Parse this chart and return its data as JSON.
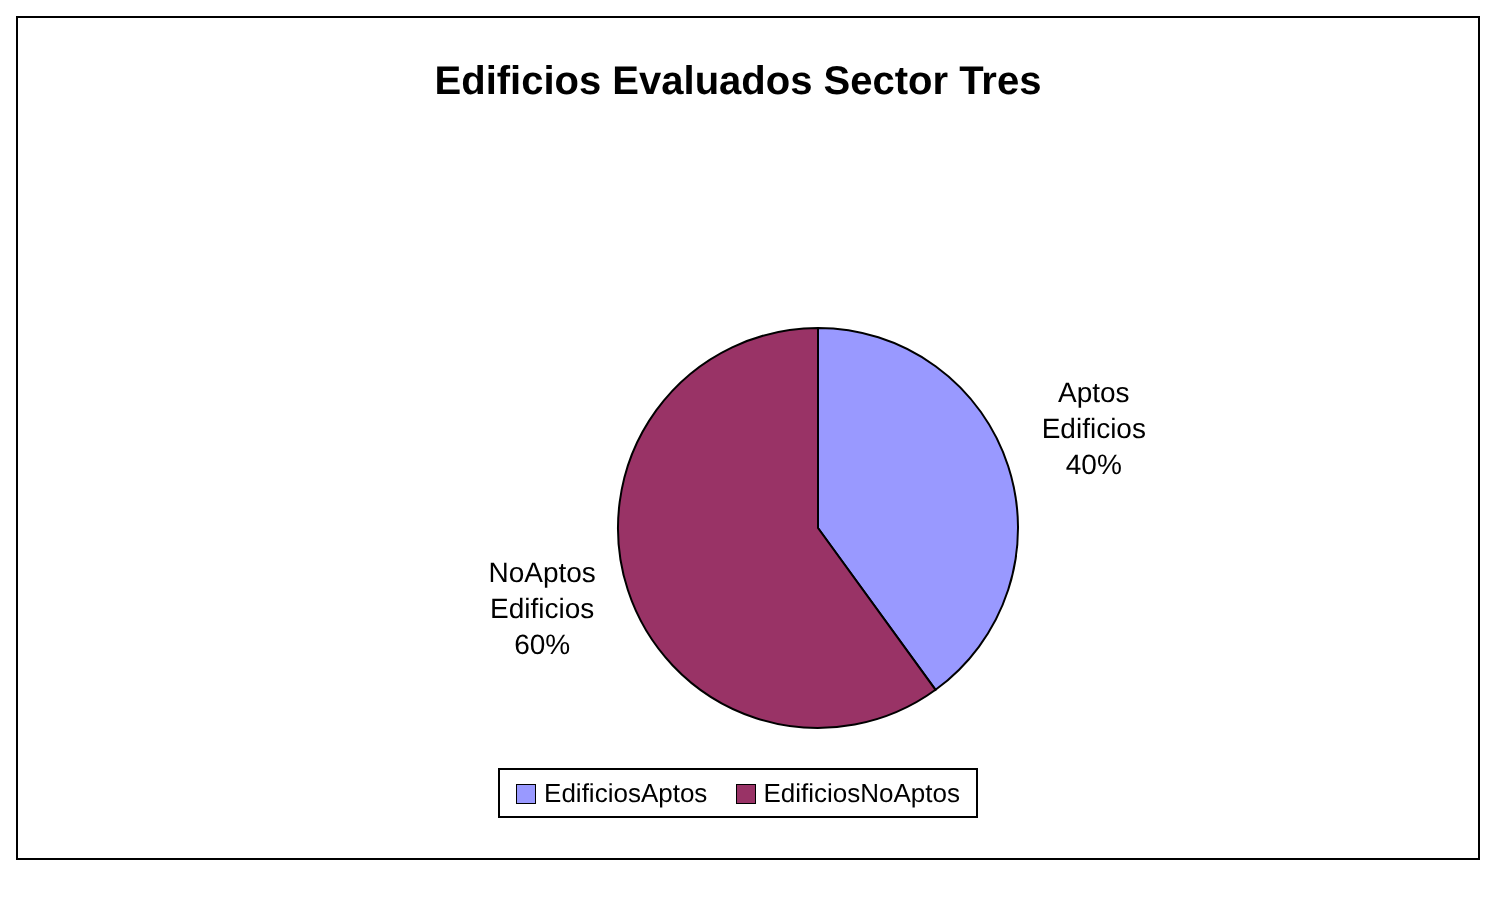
{
  "chart_data": {
    "type": "pie",
    "title": "Edificios Evaluados Sector Tres",
    "categories": [
      "EdificiosAptos",
      "EdificiosNoAptos"
    ],
    "values": [
      40,
      60
    ],
    "colors": [
      "#9999ff",
      "#993366"
    ],
    "value_labels": [
      "Aptos Edificios 40%",
      "NoAptos Edificios 60%"
    ],
    "legend": "bottom"
  }
}
